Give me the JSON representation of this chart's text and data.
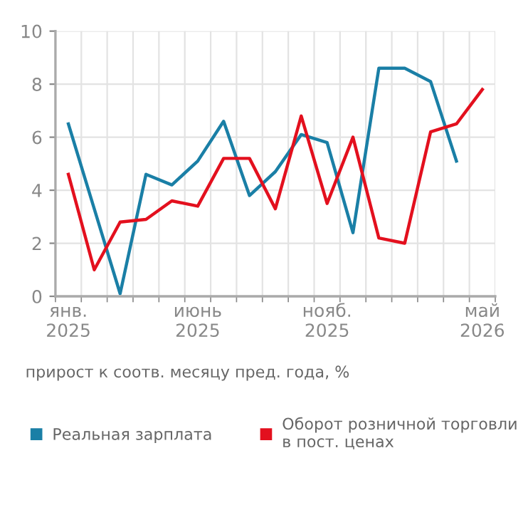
{
  "chart_data": {
    "type": "line",
    "categories": [
      "янв.\n2025",
      null,
      null,
      null,
      null,
      "июнь\n2025",
      null,
      null,
      null,
      null,
      "нояб.\n2025",
      null,
      null,
      null,
      null,
      null,
      "май\n2026"
    ],
    "series": [
      {
        "name": "Реальная зарплата",
        "color": "#1a7fa6",
        "values": [
          6.5,
          3.3,
          0.1,
          4.6,
          4.2,
          5.1,
          6.6,
          3.8,
          4.7,
          6.1,
          5.8,
          2.4,
          8.6,
          8.6,
          8.1,
          5.1,
          null
        ]
      },
      {
        "name": "Оборот розничной торговли\nв пост. ценах",
        "color": "#e3101e",
        "values": [
          4.6,
          1.0,
          2.8,
          2.9,
          3.6,
          3.4,
          5.2,
          5.2,
          3.3,
          6.8,
          3.5,
          6.0,
          2.2,
          2.0,
          6.2,
          6.5,
          7.8
        ]
      }
    ],
    "ylim": [
      0,
      10
    ],
    "yticks": [
      0,
      2,
      4,
      6,
      8,
      10
    ],
    "grid": true,
    "legend": "bottom",
    "marker": "none",
    "line_style": "solid",
    "annotations": [
      "прирост к соотв. месяцу пред. года, %"
    ]
  }
}
